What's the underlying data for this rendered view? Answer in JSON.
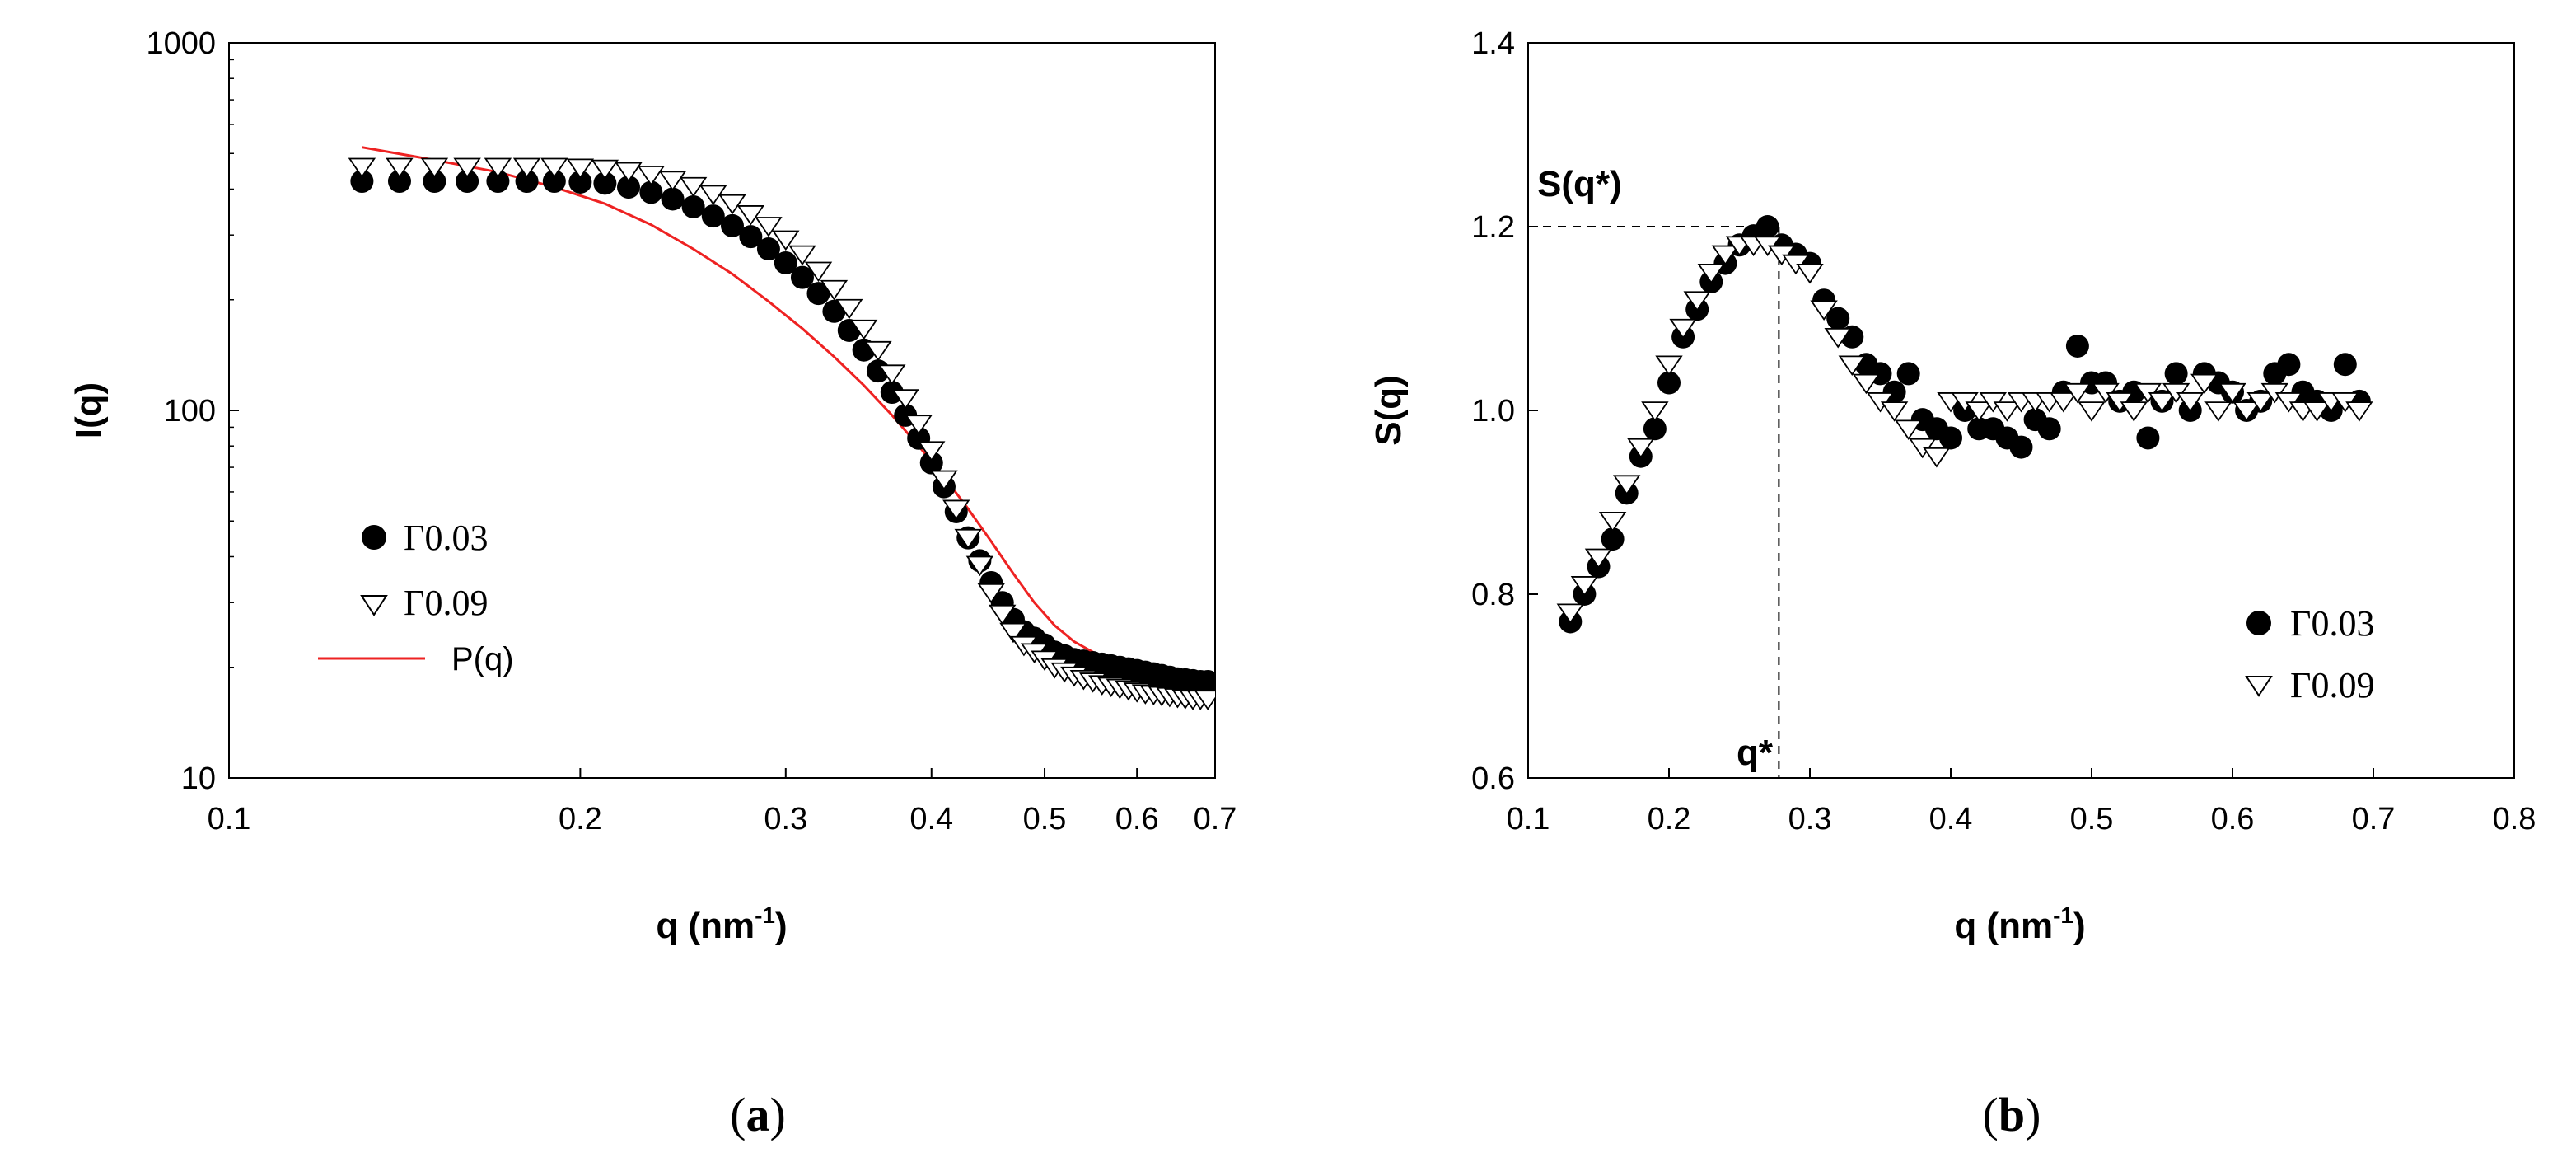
{
  "chart_data": [
    {
      "type": "scatter",
      "panel_label": "(a)",
      "panel_letter": "a",
      "xscale": "log",
      "yscale": "log",
      "xlim": [
        0.1,
        0.7
      ],
      "ylim": [
        10,
        1000
      ],
      "xticks": [
        0.1,
        0.2,
        0.3,
        0.4,
        0.5,
        0.6,
        0.7
      ],
      "xtick_labels": [
        "0.1",
        "0.2",
        "0.3",
        "0.4",
        "0.5",
        "0.6",
        "0.7"
      ],
      "yticks": [
        10,
        100,
        1000
      ],
      "ytick_labels": [
        "10",
        "100",
        "1000"
      ],
      "xlabel": "q (nm-1)",
      "xlabel_main": "q (nm",
      "xlabel_sup": "-1",
      "xlabel_close": ")",
      "ylabel": "I(q)",
      "legend_position": "lower-left",
      "series": [
        {
          "name": "Γ0.03",
          "marker": "filled-circle",
          "x": [
            0.13,
            0.14,
            0.15,
            0.16,
            0.17,
            0.18,
            0.19,
            0.2,
            0.21,
            0.22,
            0.23,
            0.24,
            0.25,
            0.26,
            0.27,
            0.28,
            0.29,
            0.3,
            0.31,
            0.32,
            0.33,
            0.34,
            0.35,
            0.36,
            0.37,
            0.38,
            0.39,
            0.4,
            0.41,
            0.42,
            0.43,
            0.44,
            0.45,
            0.46,
            0.47,
            0.48,
            0.49,
            0.5,
            0.51,
            0.52,
            0.53,
            0.54,
            0.55,
            0.56,
            0.57,
            0.58,
            0.59,
            0.6,
            0.61,
            0.62,
            0.63,
            0.64,
            0.65,
            0.66,
            0.67,
            0.68,
            0.69
          ],
          "values": [
            420,
            420,
            420,
            420,
            420,
            420,
            420,
            418,
            415,
            405,
            392,
            376,
            358,
            338,
            318,
            297,
            275,
            252,
            230,
            208,
            186,
            165,
            146,
            128,
            112,
            97,
            84,
            72,
            62,
            53,
            45,
            39,
            34,
            30,
            27,
            25,
            24,
            23,
            22,
            21.5,
            21,
            20.8,
            20.6,
            20.4,
            20.2,
            20,
            19.8,
            19.6,
            19.4,
            19.2,
            19,
            18.8,
            18.6,
            18.5,
            18.4,
            18.3,
            18.3
          ]
        },
        {
          "name": "Γ0.09",
          "marker": "open-down-triangle",
          "x": [
            0.13,
            0.14,
            0.15,
            0.16,
            0.17,
            0.18,
            0.19,
            0.2,
            0.21,
            0.22,
            0.23,
            0.24,
            0.25,
            0.26,
            0.27,
            0.28,
            0.29,
            0.3,
            0.31,
            0.32,
            0.33,
            0.34,
            0.35,
            0.36,
            0.37,
            0.38,
            0.39,
            0.4,
            0.41,
            0.42,
            0.43,
            0.44,
            0.45,
            0.46,
            0.47,
            0.48,
            0.49,
            0.5,
            0.51,
            0.52,
            0.53,
            0.54,
            0.55,
            0.56,
            0.57,
            0.58,
            0.59,
            0.6,
            0.61,
            0.62,
            0.63,
            0.64,
            0.65,
            0.66,
            0.67,
            0.68,
            0.69
          ],
          "values": [
            460,
            460,
            460,
            460,
            460,
            460,
            460,
            458,
            455,
            448,
            438,
            424,
            408,
            388,
            366,
            342,
            318,
            292,
            266,
            240,
            214,
            190,
            167,
            146,
            126,
            108,
            92,
            78,
            65,
            54,
            45,
            38,
            32,
            28,
            25,
            23,
            22,
            21,
            20,
            19.5,
            19,
            18.6,
            18.3,
            18,
            17.8,
            17.6,
            17.4,
            17.2,
            17,
            16.9,
            16.8,
            16.7,
            16.6,
            16.5,
            16.4,
            16.4,
            16.4
          ]
        },
        {
          "name": "P(q)",
          "marker": "line",
          "color": "#ee2222",
          "x": [
            0.13,
            0.15,
            0.17,
            0.19,
            0.21,
            0.23,
            0.25,
            0.27,
            0.29,
            0.31,
            0.33,
            0.35,
            0.37,
            0.39,
            0.41,
            0.43,
            0.45,
            0.47,
            0.49,
            0.51,
            0.53,
            0.55,
            0.57,
            0.59,
            0.61,
            0.63,
            0.65,
            0.67,
            0.69
          ],
          "values": [
            520,
            480,
            445,
            405,
            365,
            320,
            275,
            235,
            198,
            167,
            140,
            117,
            97,
            80,
            66,
            54,
            44,
            36,
            30,
            26,
            23.5,
            22,
            21,
            20.5,
            20,
            19.6,
            19.2,
            18.8,
            18.4
          ]
        }
      ]
    },
    {
      "type": "scatter",
      "panel_label": "(b)",
      "panel_letter": "b",
      "xscale": "linear",
      "yscale": "linear",
      "xlim": [
        0.1,
        0.8
      ],
      "ylim": [
        0.6,
        1.4
      ],
      "xticks": [
        0.1,
        0.2,
        0.3,
        0.4,
        0.5,
        0.6,
        0.7,
        0.8
      ],
      "xtick_labels": [
        "0.1",
        "0.2",
        "0.3",
        "0.4",
        "0.5",
        "0.6",
        "0.7",
        "0.8"
      ],
      "yticks": [
        0.6,
        0.8,
        1.0,
        1.2,
        1.4
      ],
      "ytick_labels": [
        "0.6",
        "0.8",
        "1.0",
        "1.2",
        "1.4"
      ],
      "xlabel": "q (nm-1)",
      "xlabel_main": "q (nm",
      "xlabel_sup": "-1",
      "xlabel_close": ")",
      "ylabel": "S(q)",
      "legend_position": "lower-right",
      "annotations": {
        "peak_label": "S(q*)",
        "q_label": "q*",
        "peak_x": 0.278,
        "peak_y": 1.2
      },
      "series": [
        {
          "name": "Γ0.03",
          "marker": "filled-circle",
          "x": [
            0.13,
            0.14,
            0.15,
            0.16,
            0.17,
            0.18,
            0.19,
            0.2,
            0.21,
            0.22,
            0.23,
            0.24,
            0.25,
            0.26,
            0.27,
            0.28,
            0.29,
            0.3,
            0.31,
            0.32,
            0.33,
            0.34,
            0.35,
            0.36,
            0.37,
            0.38,
            0.39,
            0.4,
            0.41,
            0.42,
            0.43,
            0.44,
            0.45,
            0.46,
            0.47,
            0.48,
            0.49,
            0.5,
            0.51,
            0.52,
            0.53,
            0.54,
            0.55,
            0.56,
            0.57,
            0.58,
            0.59,
            0.6,
            0.61,
            0.62,
            0.63,
            0.64,
            0.65,
            0.66,
            0.67,
            0.68,
            0.69
          ],
          "values": [
            0.77,
            0.8,
            0.83,
            0.86,
            0.91,
            0.95,
            0.98,
            1.03,
            1.08,
            1.11,
            1.14,
            1.16,
            1.18,
            1.19,
            1.2,
            1.18,
            1.17,
            1.16,
            1.12,
            1.1,
            1.08,
            1.05,
            1.04,
            1.02,
            1.04,
            0.99,
            0.98,
            0.97,
            1.0,
            0.98,
            0.98,
            0.97,
            0.96,
            0.99,
            0.98,
            1.02,
            1.07,
            1.03,
            1.03,
            1.01,
            1.02,
            0.97,
            1.01,
            1.04,
            1.0,
            1.04,
            1.03,
            1.02,
            1.0,
            1.01,
            1.04,
            1.05,
            1.02,
            1.01,
            1.0,
            1.05,
            1.01
          ]
        },
        {
          "name": "Γ0.09",
          "marker": "open-down-triangle",
          "x": [
            0.13,
            0.14,
            0.15,
            0.16,
            0.17,
            0.18,
            0.19,
            0.2,
            0.21,
            0.22,
            0.23,
            0.24,
            0.25,
            0.26,
            0.27,
            0.28,
            0.29,
            0.3,
            0.31,
            0.32,
            0.33,
            0.34,
            0.35,
            0.36,
            0.37,
            0.38,
            0.39,
            0.4,
            0.41,
            0.42,
            0.43,
            0.44,
            0.45,
            0.46,
            0.47,
            0.48,
            0.49,
            0.5,
            0.51,
            0.52,
            0.53,
            0.54,
            0.55,
            0.56,
            0.57,
            0.58,
            0.59,
            0.6,
            0.61,
            0.62,
            0.63,
            0.64,
            0.65,
            0.66,
            0.67,
            0.68,
            0.69
          ],
          "values": [
            0.78,
            0.81,
            0.84,
            0.88,
            0.92,
            0.96,
            1.0,
            1.05,
            1.09,
            1.12,
            1.15,
            1.17,
            1.18,
            1.18,
            1.18,
            1.17,
            1.16,
            1.15,
            1.11,
            1.08,
            1.05,
            1.03,
            1.01,
            1.0,
            0.98,
            0.96,
            0.95,
            1.01,
            1.01,
            1.0,
            1.01,
            1.0,
            1.01,
            1.01,
            1.01,
            1.01,
            1.02,
            1.0,
            1.02,
            1.01,
            1.0,
            1.02,
            1.01,
            1.02,
            1.01,
            1.03,
            1.0,
            1.02,
            1.0,
            1.01,
            1.02,
            1.01,
            1.0,
            1.0,
            1.01,
            1.01,
            1.0
          ]
        }
      ]
    }
  ]
}
